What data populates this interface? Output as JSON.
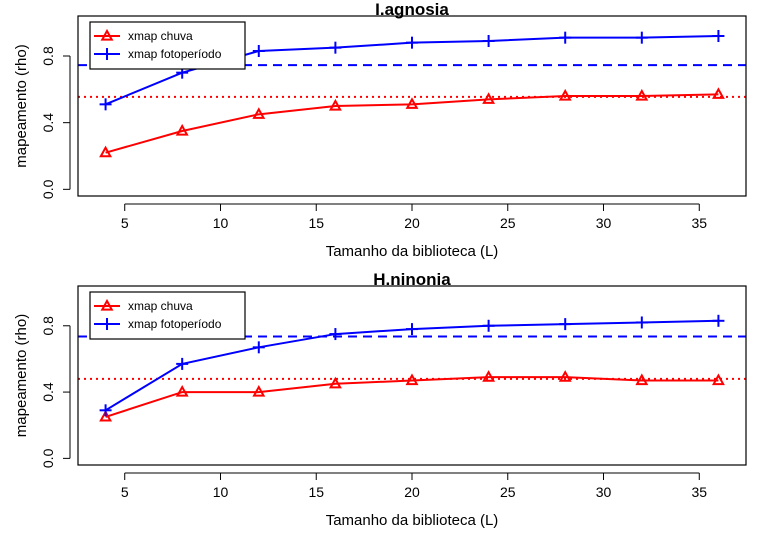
{
  "chart_data": [
    {
      "type": "line",
      "title": "I.agnosia",
      "xlabel": "Tamanho da biblioteca (L)",
      "ylabel": "mapeamento (rho)",
      "xticks": [
        5,
        10,
        15,
        20,
        25,
        30,
        35
      ],
      "yticks": [
        0.0,
        0.4,
        0.8
      ],
      "xlim": [
        2.56,
        37.44
      ],
      "ylim": [
        -0.04,
        1.04
      ],
      "legend_position": "top-left",
      "x": [
        4,
        8,
        12,
        16,
        20,
        24,
        28,
        32,
        36
      ],
      "series": [
        {
          "name": "xmap chuva",
          "color": "#ff0000",
          "marker": "triangle",
          "values": [
            0.22,
            0.35,
            0.45,
            0.5,
            0.51,
            0.54,
            0.56,
            0.56,
            0.57
          ]
        },
        {
          "name": "xmap fotoperíodo",
          "color": "#0000ff",
          "marker": "plus",
          "values": [
            0.51,
            0.7,
            0.83,
            0.85,
            0.88,
            0.89,
            0.91,
            0.91,
            0.92
          ]
        }
      ],
      "reference_lines": [
        {
          "series": "xmap fotoperíodo",
          "y": 0.745,
          "color": "#0000ff",
          "style": "dashed"
        },
        {
          "series": "xmap chuva",
          "y": 0.555,
          "color": "#ff0000",
          "style": "dotted"
        }
      ]
    },
    {
      "type": "line",
      "title": "H.ninonia",
      "xlabel": "Tamanho da biblioteca (L)",
      "ylabel": "mapeamento (rho)",
      "xticks": [
        5,
        10,
        15,
        20,
        25,
        30,
        35
      ],
      "yticks": [
        0.0,
        0.4,
        0.8
      ],
      "xlim": [
        2.56,
        37.44
      ],
      "ylim": [
        -0.04,
        1.04
      ],
      "legend_position": "top-left",
      "x": [
        4,
        8,
        12,
        16,
        20,
        24,
        28,
        32,
        36
      ],
      "series": [
        {
          "name": "xmap chuva",
          "color": "#ff0000",
          "marker": "triangle",
          "values": [
            0.25,
            0.4,
            0.4,
            0.45,
            0.47,
            0.49,
            0.49,
            0.47,
            0.47
          ]
        },
        {
          "name": "xmap fotoperíodo",
          "color": "#0000ff",
          "marker": "plus",
          "values": [
            0.29,
            0.57,
            0.67,
            0.75,
            0.78,
            0.8,
            0.81,
            0.82,
            0.83
          ]
        }
      ],
      "reference_lines": [
        {
          "series": "xmap fotoperíodo",
          "y": 0.735,
          "color": "#0000ff",
          "style": "dashed"
        },
        {
          "series": "xmap chuva",
          "y": 0.48,
          "color": "#ff0000",
          "style": "dotted"
        }
      ]
    }
  ]
}
